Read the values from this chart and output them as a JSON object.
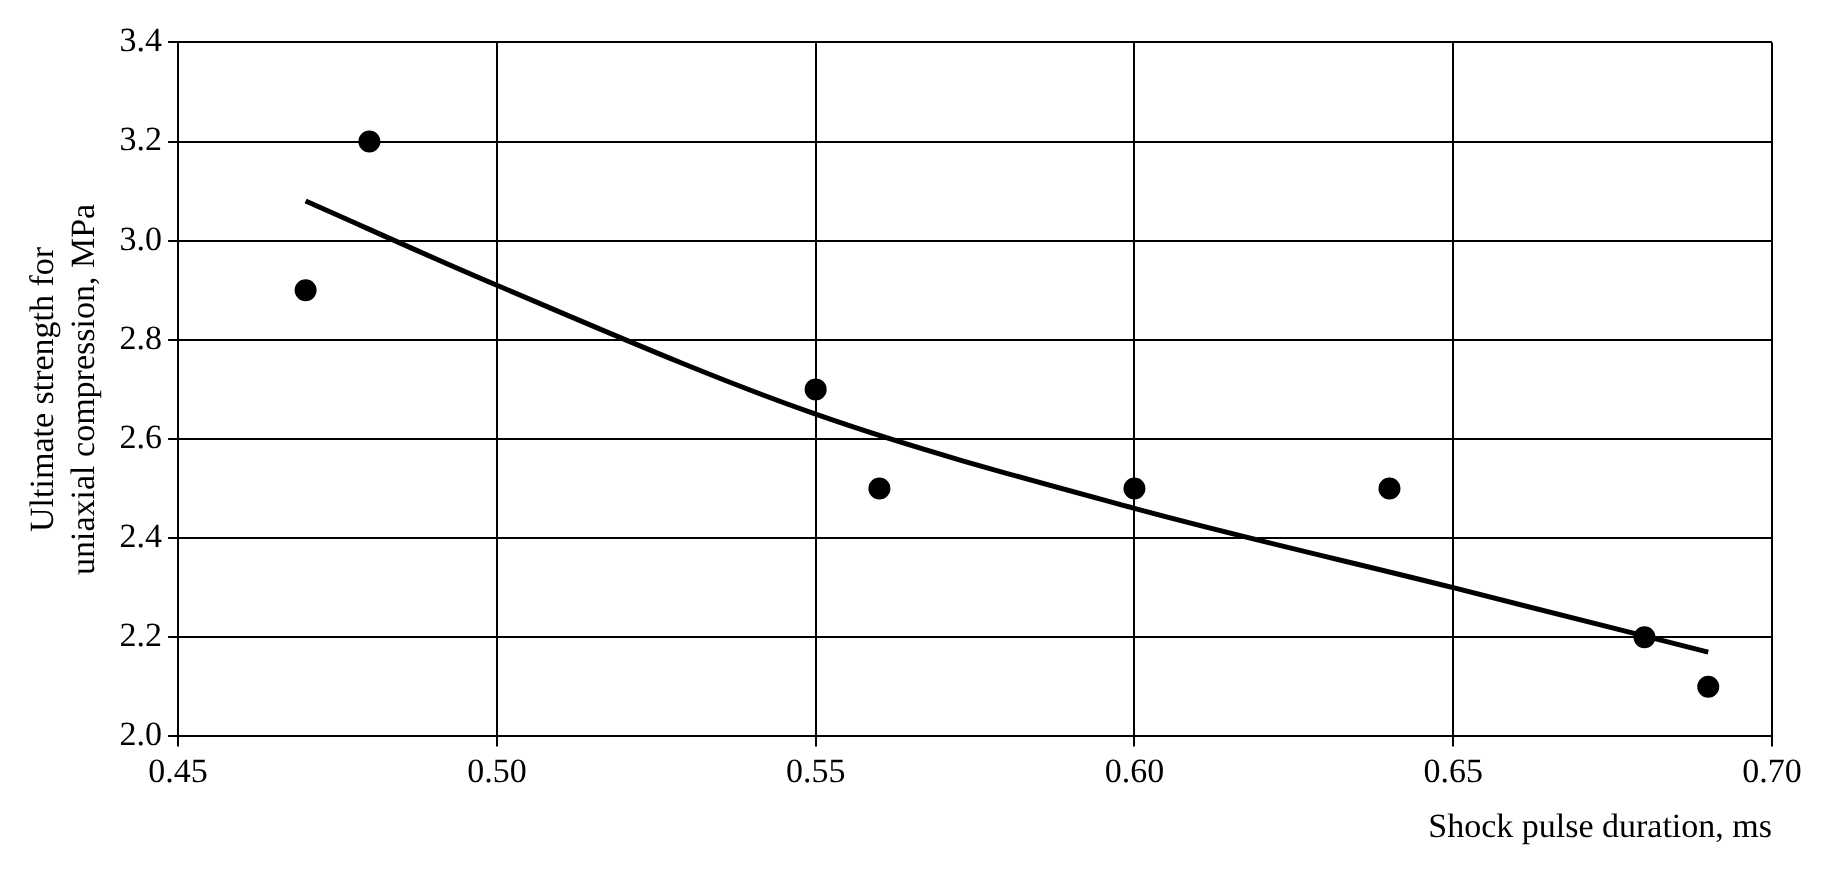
{
  "chart_data": {
    "type": "scatter",
    "xlabel": "Shock pulse duration, ms",
    "ylabel": "Ultimate strength for uniaxial compression, MPa",
    "xlim": [
      0.45,
      0.7
    ],
    "xticks": [
      {
        "value": 0.45,
        "label": "0.45"
      },
      {
        "value": 0.5,
        "label": "0.50"
      },
      {
        "value": 0.55,
        "label": "0.55"
      },
      {
        "value": 0.6,
        "label": "0.60"
      },
      {
        "value": 0.65,
        "label": "0.65"
      },
      {
        "value": 0.7,
        "label": "0.70"
      }
    ],
    "ylim": [
      2.0,
      3.4
    ],
    "yticks": [
      {
        "value": 2.0,
        "label": "2.0"
      },
      {
        "value": 2.2,
        "label": "2.2"
      },
      {
        "value": 2.4,
        "label": "2.4"
      },
      {
        "value": 2.6,
        "label": "2.6"
      },
      {
        "value": 2.8,
        "label": "2.8"
      },
      {
        "value": 3.0,
        "label": "3.0"
      },
      {
        "value": 3.2,
        "label": "3.2"
      },
      {
        "value": 3.4,
        "label": "3.4"
      }
    ],
    "grid": true,
    "legend": false,
    "series": [
      {
        "type": "scatter",
        "color": "#000000",
        "marker": "circle",
        "x": [
          0.47,
          0.48,
          0.55,
          0.56,
          0.6,
          0.64,
          0.68,
          0.69
        ],
        "values": [
          2.9,
          3.2,
          2.7,
          2.5,
          2.5,
          2.5,
          2.2,
          2.1
        ]
      },
      {
        "type": "line",
        "color": "#000000",
        "marker": "none",
        "line_style": "solid",
        "x": [
          0.47,
          0.5,
          0.55,
          0.6,
          0.65,
          0.69
        ],
        "values": [
          3.08,
          2.91,
          2.65,
          2.46,
          2.3,
          2.17
        ]
      }
    ]
  }
}
